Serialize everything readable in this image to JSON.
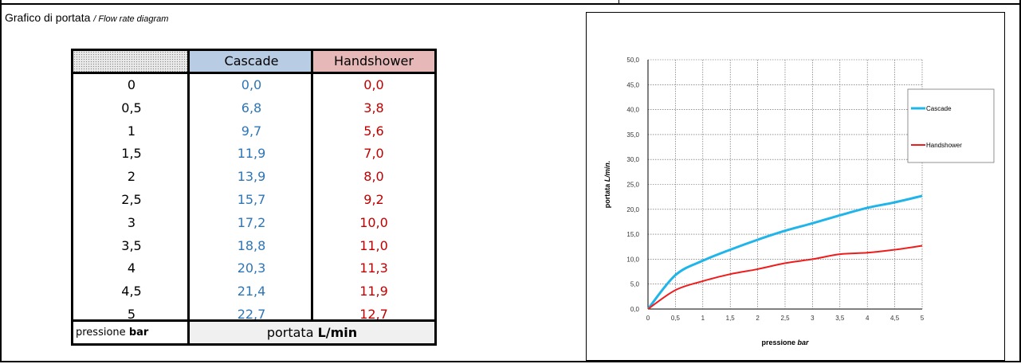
{
  "heading": {
    "title": "Grafico di portata",
    "subtitle": "/ Flow rate diagram"
  },
  "table": {
    "headers": {
      "col1": "",
      "cascade": "Cascade",
      "handshower": "Handshower"
    },
    "rows": [
      {
        "p": "0",
        "cascade": "0,0",
        "hand": "0,0"
      },
      {
        "p": "0,5",
        "cascade": "6,8",
        "hand": "3,8"
      },
      {
        "p": "1",
        "cascade": "9,7",
        "hand": "5,6"
      },
      {
        "p": "1,5",
        "cascade": "11,9",
        "hand": "7,0"
      },
      {
        "p": "2",
        "cascade": "13,9",
        "hand": "8,0"
      },
      {
        "p": "2,5",
        "cascade": "15,7",
        "hand": "9,2"
      },
      {
        "p": "3",
        "cascade": "17,2",
        "hand": "10,0"
      },
      {
        "p": "3,5",
        "cascade": "18,8",
        "hand": "11,0"
      },
      {
        "p": "4",
        "cascade": "20,3",
        "hand": "11,3"
      },
      {
        "p": "4,5",
        "cascade": "21,4",
        "hand": "11,9"
      },
      {
        "p": "5",
        "cascade": "22,7",
        "hand": "12,7"
      }
    ],
    "footer": {
      "pressure_label": "pressione",
      "pressure_unit": "bar",
      "flow_label": "portata",
      "flow_unit": "L/min"
    }
  },
  "colors": {
    "cascade": "#1fb4ea",
    "handshower": "#f01c1c",
    "cascade_text": "#2e75b6",
    "handshower_text": "#c00000"
  },
  "chart_data": {
    "type": "line",
    "x": [
      0,
      0.5,
      1,
      1.5,
      2,
      2.5,
      3,
      3.5,
      4,
      4.5,
      5
    ],
    "xtick_labels": [
      "0",
      "0,5",
      "1",
      "1,5",
      "2",
      "2,5",
      "3",
      "3,5",
      "4",
      "4,5",
      "5"
    ],
    "ytick_labels": [
      "0,0",
      "5,0",
      "10,0",
      "15,0",
      "20,0",
      "25,0",
      "30,0",
      "35,0",
      "40,0",
      "45,0",
      "50,0"
    ],
    "series": [
      {
        "name": "Cascade",
        "values": [
          0,
          6.8,
          9.7,
          11.9,
          13.9,
          15.7,
          17.2,
          18.8,
          20.3,
          21.4,
          22.7
        ]
      },
      {
        "name": "Handshower",
        "values": [
          0,
          3.8,
          5.6,
          7.0,
          8.0,
          9.2,
          10.0,
          11.0,
          11.3,
          11.9,
          12.7
        ]
      }
    ],
    "xlabel": "pressione",
    "xlabel_unit": "bar",
    "ylabel": "portata",
    "ylabel_unit": "L/min.",
    "xlim": [
      0,
      5
    ],
    "ylim": [
      0,
      50
    ],
    "grid": true,
    "legend": "right"
  }
}
